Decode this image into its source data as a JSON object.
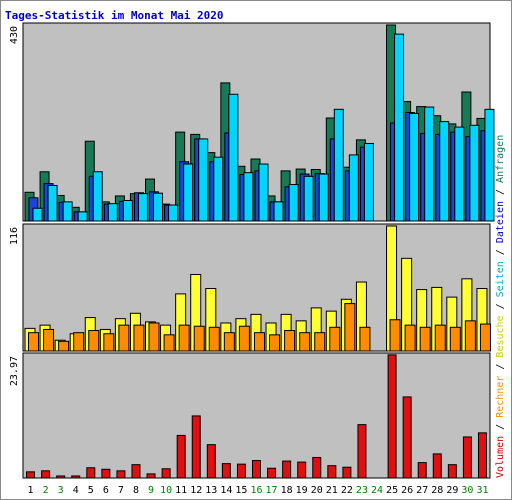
{
  "chart_data": {
    "title": "Tages-Statistik im Monat Mai 2020",
    "type": "bar",
    "categories": [
      "1",
      "2",
      "3",
      "4",
      "5",
      "6",
      "7",
      "8",
      "9",
      "10",
      "11",
      "12",
      "13",
      "14",
      "15",
      "16",
      "17",
      "18",
      "19",
      "20",
      "21",
      "22",
      "23",
      "24",
      "25",
      "26",
      "27",
      "28",
      "29",
      "30",
      "31"
    ],
    "weekend_days": [
      "2",
      "3",
      "9",
      "10",
      "16",
      "17",
      "23",
      "24",
      "30",
      "31"
    ],
    "colors": {
      "anfragen": "#157a55",
      "dateien": "#1b45d9",
      "seiten": "#00d5ff",
      "besuche": "#ffff33",
      "rechner": "#ff8c00",
      "volumen": "#e01010",
      "weekday_label": "#000000",
      "weekend_label": "#008000",
      "plot_bg": "#c0c0c0",
      "title": "#0000cc"
    },
    "panels": [
      {
        "ymax_label": "430",
        "ymax": 430,
        "series": [
          {
            "name": "Anfragen",
            "values": [
              63,
              108,
              56,
              30,
              175,
              42,
              55,
              60,
              92,
              37,
              195,
              190,
              150,
              303,
              120,
              136,
              55,
              110,
              114,
              113,
              226,
              118,
              178,
              0,
              430,
              262,
              251,
              231,
              213,
              283,
              225
            ]
          },
          {
            "name": "Dateien",
            "values": [
              51,
              82,
              41,
              20,
              98,
              37,
              43,
              62,
              64,
              35,
              130,
              180,
              130,
              193,
              102,
              110,
              42,
              75,
              103,
              104,
              180,
              110,
              162,
              0,
              215,
              238,
              192,
              190,
              195,
              185,
              198
            ]
          },
          {
            "name": "Seiten",
            "values": [
              28,
              78,
              42,
              20,
              108,
              38,
              45,
              60,
              61,
              35,
              125,
              180,
              140,
              278,
              106,
              125,
              42,
              80,
              98,
              103,
              245,
              145,
              170,
              0,
              410,
              236,
              250,
              218,
              206,
              210,
              245
            ]
          }
        ]
      },
      {
        "ymax_label": "116",
        "ymax": 116,
        "series": [
          {
            "name": "Besuche",
            "values": [
              21,
              24,
              10,
              16,
              31,
              20,
              30,
              35,
              27,
              24,
              53,
              71,
              58,
              26,
              30,
              34,
              26,
              34,
              28,
              40,
              37,
              48,
              64,
              0,
              116,
              86,
              57,
              59,
              50,
              67,
              58
            ]
          },
          {
            "name": "Rechner",
            "values": [
              17,
              20,
              9,
              17,
              19,
              16,
              24,
              24,
              26,
              15,
              24,
              23,
              22,
              17,
              23,
              17,
              15,
              19,
              17,
              17,
              22,
              44,
              22,
              0,
              29,
              24,
              22,
              24,
              22,
              28,
              25
            ]
          }
        ]
      },
      {
        "ymax_label": "23.97",
        "ymax": 23.97,
        "series": [
          {
            "name": "Volumen",
            "values": [
              1.2,
              1.4,
              0.4,
              0.4,
              2.0,
              1.7,
              1.4,
              2.6,
              0.8,
              1.8,
              8.3,
              12.1,
              6.5,
              2.8,
              2.7,
              3.4,
              1.9,
              3.3,
              3.1,
              4.0,
              2.4,
              2.1,
              10.4,
              0,
              24.0,
              15.8,
              3.0,
              4.7,
              2.6,
              8.0,
              8.8
            ]
          }
        ]
      }
    ],
    "legend_right": [
      {
        "text": "Volumen",
        "color": "#cc0000"
      },
      {
        "text": "Rechner",
        "color": "#ff8c00"
      },
      {
        "text": "Besuche",
        "color": "#cccc00"
      },
      {
        "text": "Seiten",
        "color": "#00aacc"
      },
      {
        "text": "Dateien",
        "color": "#0000cc"
      },
      {
        "text": "Anfragen",
        "color": "#157a55"
      }
    ],
    "legend_separator": "/"
  }
}
